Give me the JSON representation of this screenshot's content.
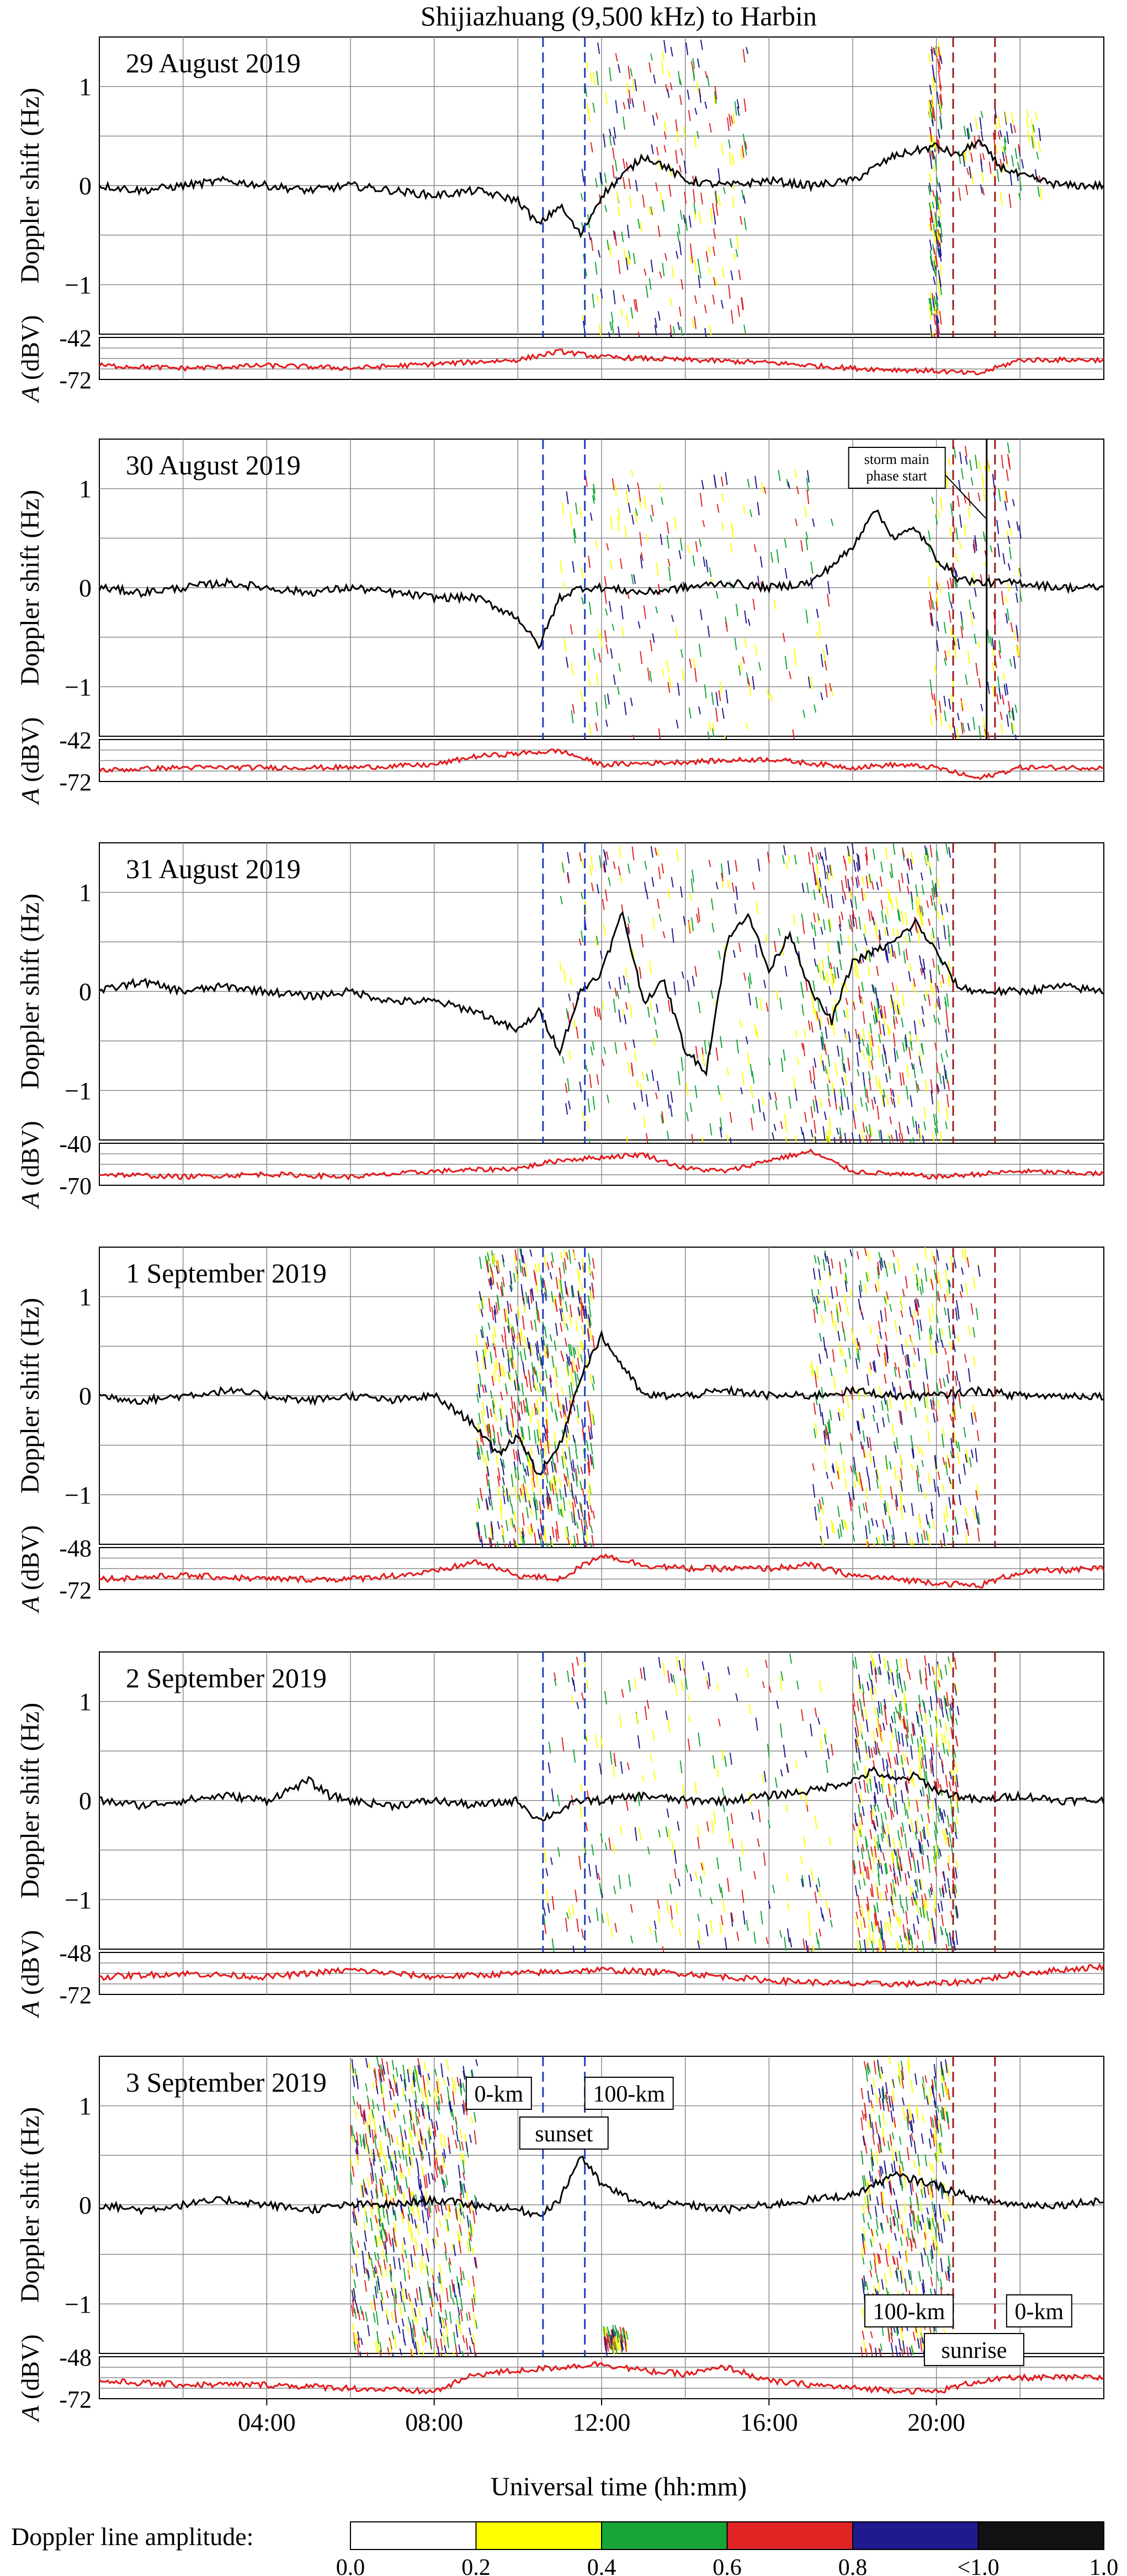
{
  "title": "Shijiazhuang (9,500 kHz) to Harbin",
  "x_axis": {
    "label": "Universal time (hh:mm)",
    "range_hours": [
      0,
      24
    ],
    "tick_labels": [
      "04:00",
      "08:00",
      "12:00",
      "16:00",
      "20:00"
    ],
    "tick_hours": [
      4,
      8,
      12,
      16,
      20
    ],
    "grid_step_hours": 2
  },
  "y_axes": {
    "doppler_label": "Doppler shift (Hz)",
    "amplitude_label": "A (dBV)",
    "amplitude_label_italic_part": "A",
    "amplitude_label_rest": " (dBV)",
    "doppler_range_hz": [
      -1.5,
      1.5
    ],
    "doppler_tick_labels": [
      "1",
      "0",
      "−1"
    ],
    "doppler_tick_values": [
      1,
      0,
      -1
    ]
  },
  "colors": {
    "doppler_main_trace": "#000000",
    "amplitude_trace": "#e41a1c",
    "terminator_sunset": "#1f3fbf",
    "terminator_sunrise": "#9b1c1c",
    "storm_line": "#000000"
  },
  "legend": {
    "label": "Doppler line amplitude:",
    "bins": [
      {
        "from": 0.0,
        "to": 0.2,
        "color": "#ffffff"
      },
      {
        "from": 0.2,
        "to": 0.4,
        "color": "#ffff00"
      },
      {
        "from": 0.4,
        "to": 0.6,
        "color": "#17a537"
      },
      {
        "from": 0.6,
        "to": 0.8,
        "color": "#e02424"
      },
      {
        "from": 0.8,
        "to": 1.0,
        "color": "#1f1a8e"
      },
      {
        "from": 1.0,
        "to": 1.0,
        "color": "#111111"
      }
    ],
    "tick_labels": [
      "0.0",
      "0.2",
      "0.4",
      "0.6",
      "0.8",
      "<1.0",
      "1.0"
    ]
  },
  "annotations": {
    "storm": "storm main phase start",
    "storm_line1": "storm main",
    "storm_line2": "phase start",
    "storm_hour": 21.2,
    "sunset_label": "sunset",
    "sunrise_label": "sunrise",
    "zero_km": "0-km",
    "hundred_km": "100-km"
  },
  "chart_data": {
    "type": "line",
    "x_unit": "hours UT",
    "panels": [
      {
        "date": "29 August 2019",
        "amplitude_ticks": [
          "-42",
          "-72"
        ],
        "amplitude_range_dbv": [
          -72,
          -42
        ],
        "sunset_lines_hours": [
          10.6,
          11.6
        ],
        "sunrise_lines_hours": [
          20.4,
          21.4
        ],
        "main_trace": {
          "x": [
            0,
            1,
            2,
            3,
            4,
            5,
            6,
            7,
            8,
            9,
            10,
            10.5,
            11,
            11.5,
            12,
            12.5,
            13,
            13.5,
            14,
            15,
            16,
            17,
            18,
            19,
            19.5,
            20,
            20.5,
            21,
            21.5,
            22,
            23,
            24
          ],
          "y": [
            0.0,
            -0.05,
            0.0,
            0.05,
            0.0,
            -0.05,
            0.0,
            -0.05,
            -0.1,
            -0.05,
            -0.15,
            -0.4,
            -0.2,
            -0.5,
            -0.1,
            0.1,
            0.3,
            0.2,
            0.05,
            0.0,
            0.05,
            0.0,
            0.05,
            0.3,
            0.35,
            0.4,
            0.3,
            0.45,
            0.2,
            0.1,
            0.0,
            0.0
          ]
        },
        "amplitude": {
          "x": [
            0,
            2,
            4,
            6,
            8,
            10,
            11,
            12,
            14,
            16,
            18,
            20,
            21,
            22,
            24
          ],
          "y": [
            -62,
            -64,
            -62,
            -64,
            -61,
            -58,
            -52,
            -56,
            -58,
            -60,
            -64,
            -66,
            -68,
            -58,
            -58
          ]
        },
        "scatter_clusters": [
          {
            "x0": 11.5,
            "x1": 15.5,
            "y0": -1.5,
            "y1": 1.5,
            "count": 260
          },
          {
            "x0": 19.8,
            "x1": 20.1,
            "y0": -1.5,
            "y1": 1.5,
            "count": 160
          },
          {
            "x0": 20.5,
            "x1": 22.5,
            "y0": -0.1,
            "y1": 0.8,
            "count": 80
          }
        ]
      },
      {
        "date": "30 August 2019",
        "amplitude_ticks": [
          "-42",
          "-72"
        ],
        "amplitude_range_dbv": [
          -72,
          -42
        ],
        "sunset_lines_hours": [
          10.6,
          11.6
        ],
        "sunrise_lines_hours": [
          20.4,
          21.4
        ],
        "storm_line": true,
        "main_trace": {
          "x": [
            0,
            1,
            2,
            3,
            4,
            5,
            6,
            7,
            8,
            9,
            10,
            10.5,
            11,
            11.5,
            12,
            13,
            14,
            15,
            16,
            17,
            18,
            18.5,
            19,
            19.5,
            20,
            20.5,
            21,
            22,
            23,
            24
          ],
          "y": [
            0.0,
            -0.05,
            0.0,
            0.05,
            0.0,
            -0.05,
            0.0,
            -0.05,
            -0.1,
            -0.1,
            -0.3,
            -0.6,
            -0.1,
            0.0,
            0.0,
            -0.05,
            0.0,
            0.05,
            0.0,
            0.05,
            0.4,
            0.8,
            0.5,
            0.6,
            0.3,
            0.1,
            0.05,
            0.05,
            0.0,
            0.0
          ]
        },
        "amplitude": {
          "x": [
            0,
            2,
            4,
            6,
            8,
            9,
            10,
            11,
            12,
            14,
            16,
            18,
            19,
            20,
            21,
            22,
            24
          ],
          "y": [
            -64,
            -62,
            -62,
            -62,
            -60,
            -54,
            -52,
            -50,
            -60,
            -58,
            -56,
            -62,
            -60,
            -62,
            -70,
            -62,
            -62
          ]
        },
        "scatter_clusters": [
          {
            "x0": 11.0,
            "x1": 17.5,
            "y0": -1.5,
            "y1": 1.2,
            "count": 240
          },
          {
            "x0": 19.8,
            "x1": 22.0,
            "y0": -1.5,
            "y1": 1.5,
            "count": 200
          }
        ]
      },
      {
        "date": "31 August 2019",
        "amplitude_ticks": [
          "-40",
          "-70"
        ],
        "amplitude_range_dbv": [
          -70,
          -40
        ],
        "sunset_lines_hours": [
          10.6,
          11.6
        ],
        "sunrise_lines_hours": [
          20.4,
          21.4
        ],
        "main_trace": {
          "x": [
            0,
            1,
            2,
            3,
            4,
            5,
            6,
            7,
            8,
            9,
            10,
            10.5,
            11,
            11.5,
            12,
            12.5,
            13,
            13.5,
            14,
            14.5,
            15,
            15.5,
            16,
            16.5,
            17,
            17.5,
            18,
            19,
            19.5,
            20,
            20.5,
            21,
            22,
            23,
            24
          ],
          "y": [
            0.0,
            0.1,
            0.0,
            0.05,
            0.0,
            -0.05,
            0.0,
            -0.1,
            -0.1,
            -0.2,
            -0.4,
            -0.2,
            -0.6,
            0.0,
            0.2,
            0.8,
            -0.1,
            0.1,
            -0.6,
            -0.8,
            0.5,
            0.8,
            0.2,
            0.6,
            0.0,
            -0.3,
            0.3,
            0.5,
            0.7,
            0.4,
            0.05,
            0.0,
            0.0,
            0.05,
            0.0
          ]
        },
        "amplitude": {
          "x": [
            0,
            2,
            4,
            6,
            8,
            10,
            11,
            12,
            13,
            14,
            15,
            16,
            17,
            18,
            20,
            21,
            22,
            24
          ],
          "y": [
            -62,
            -64,
            -62,
            -64,
            -60,
            -58,
            -52,
            -50,
            -48,
            -58,
            -60,
            -52,
            -46,
            -60,
            -64,
            -62,
            -60,
            -62
          ]
        },
        "scatter_clusters": [
          {
            "x0": 11.0,
            "x1": 17.5,
            "y0": -1.5,
            "y1": 1.5,
            "count": 300
          },
          {
            "x0": 17.0,
            "x1": 20.3,
            "y0": -1.5,
            "y1": 1.5,
            "count": 500
          }
        ]
      },
      {
        "date": "1 September 2019",
        "amplitude_ticks": [
          "-48",
          "-72"
        ],
        "amplitude_range_dbv": [
          -72,
          -48
        ],
        "sunset_lines_hours": [
          10.6,
          11.6
        ],
        "sunrise_lines_hours": [
          20.4,
          21.4
        ],
        "main_trace": {
          "x": [
            0,
            1,
            2,
            3,
            4,
            5,
            6,
            7,
            8,
            9,
            9.5,
            10,
            10.5,
            11,
            11.5,
            12,
            12.5,
            13,
            14,
            15,
            16,
            17,
            18,
            19,
            20,
            21,
            22,
            23,
            24
          ],
          "y": [
            0.0,
            -0.05,
            0.0,
            0.05,
            0.0,
            -0.05,
            0.0,
            -0.05,
            0.0,
            -0.3,
            -0.6,
            -0.4,
            -0.8,
            -0.5,
            0.2,
            0.6,
            0.3,
            0.0,
            0.0,
            0.05,
            0.0,
            0.0,
            0.05,
            0.0,
            0.0,
            0.05,
            0.0,
            0.0,
            0.0
          ]
        },
        "amplitude": {
          "x": [
            0,
            2,
            4,
            6,
            8,
            9,
            10,
            11,
            12,
            13,
            14,
            16,
            17,
            18,
            20,
            21,
            22,
            24
          ],
          "y": [
            -66,
            -64,
            -66,
            -66,
            -62,
            -56,
            -64,
            -66,
            -52,
            -58,
            -60,
            -60,
            -58,
            -64,
            -68,
            -70,
            -62,
            -60
          ]
        },
        "scatter_clusters": [
          {
            "x0": 9.0,
            "x1": 11.8,
            "y0": -1.5,
            "y1": 1.5,
            "count": 700
          },
          {
            "x0": 17.0,
            "x1": 21.0,
            "y0": -1.5,
            "y1": 1.5,
            "count": 500
          }
        ]
      },
      {
        "date": "2 September 2019",
        "amplitude_ticks": [
          "-48",
          "-72"
        ],
        "amplitude_range_dbv": [
          -72,
          -48
        ],
        "sunset_lines_hours": [
          10.6,
          11.6
        ],
        "sunrise_lines_hours": [
          20.4,
          21.4
        ],
        "main_trace": {
          "x": [
            0,
            1,
            2,
            3,
            4,
            5,
            5.5,
            6,
            7,
            8,
            9,
            10,
            10.5,
            11,
            11.5,
            12,
            13,
            14,
            15,
            16,
            17,
            18,
            18.5,
            19,
            19.5,
            20,
            21,
            22,
            23,
            24
          ],
          "y": [
            0.0,
            -0.05,
            0.0,
            0.05,
            0.0,
            0.2,
            0.05,
            0.0,
            -0.05,
            0.0,
            -0.05,
            0.0,
            -0.2,
            -0.1,
            0.0,
            0.0,
            0.05,
            0.0,
            0.0,
            0.05,
            0.1,
            0.2,
            0.3,
            0.2,
            0.25,
            0.1,
            0.0,
            0.05,
            0.0,
            0.0
          ]
        },
        "amplitude": {
          "x": [
            0,
            2,
            4,
            6,
            8,
            10,
            12,
            14,
            16,
            18,
            20,
            21,
            22,
            24
          ],
          "y": [
            -62,
            -60,
            -62,
            -58,
            -62,
            -60,
            -58,
            -60,
            -64,
            -66,
            -66,
            -64,
            -60,
            -56
          ]
        },
        "scatter_clusters": [
          {
            "x0": 10.5,
            "x1": 17.5,
            "y0": -1.5,
            "y1": 1.5,
            "count": 280
          },
          {
            "x0": 18.0,
            "x1": 20.5,
            "y0": -1.5,
            "y1": 1.5,
            "count": 600
          }
        ]
      },
      {
        "date": "3 September 2019",
        "amplitude_ticks": [
          "-48",
          "-72"
        ],
        "amplitude_range_dbv": [
          -72,
          -48
        ],
        "sunset_lines_hours": [
          10.6,
          11.6
        ],
        "sunrise_lines_hours": [
          20.4,
          21.4
        ],
        "labels": true,
        "main_trace": {
          "x": [
            0,
            1,
            2,
            3,
            4,
            5,
            6,
            7,
            8,
            9,
            10,
            10.5,
            11,
            11.5,
            12,
            13,
            14,
            15,
            16,
            17,
            18,
            19,
            20,
            21,
            22,
            23,
            24
          ],
          "y": [
            0.0,
            -0.05,
            0.0,
            0.05,
            0.0,
            -0.05,
            0.0,
            0.0,
            0.05,
            0.0,
            -0.05,
            -0.1,
            0.05,
            0.5,
            0.2,
            0.0,
            0.0,
            -0.05,
            0.0,
            0.05,
            0.1,
            0.3,
            0.2,
            0.05,
            0.0,
            0.0,
            0.05
          ]
        },
        "amplitude": {
          "x": [
            0,
            2,
            4,
            6,
            8,
            9,
            10,
            11,
            12,
            13,
            14,
            15,
            16,
            18,
            20,
            21,
            22,
            24
          ],
          "y": [
            -62,
            -64,
            -64,
            -66,
            -68,
            -58,
            -56,
            -54,
            -52,
            -56,
            -58,
            -54,
            -62,
            -66,
            -68,
            -62,
            -60,
            -60
          ]
        },
        "scatter_clusters": [
          {
            "x0": 6.0,
            "x1": 9.0,
            "y0": -1.5,
            "y1": 1.5,
            "count": 700
          },
          {
            "x0": 18.2,
            "x1": 20.3,
            "y0": -1.5,
            "y1": 1.5,
            "count": 500
          },
          {
            "x0": 12.0,
            "x1": 12.6,
            "y0": -1.4,
            "y1": -1.2,
            "count": 60
          }
        ]
      }
    ]
  }
}
